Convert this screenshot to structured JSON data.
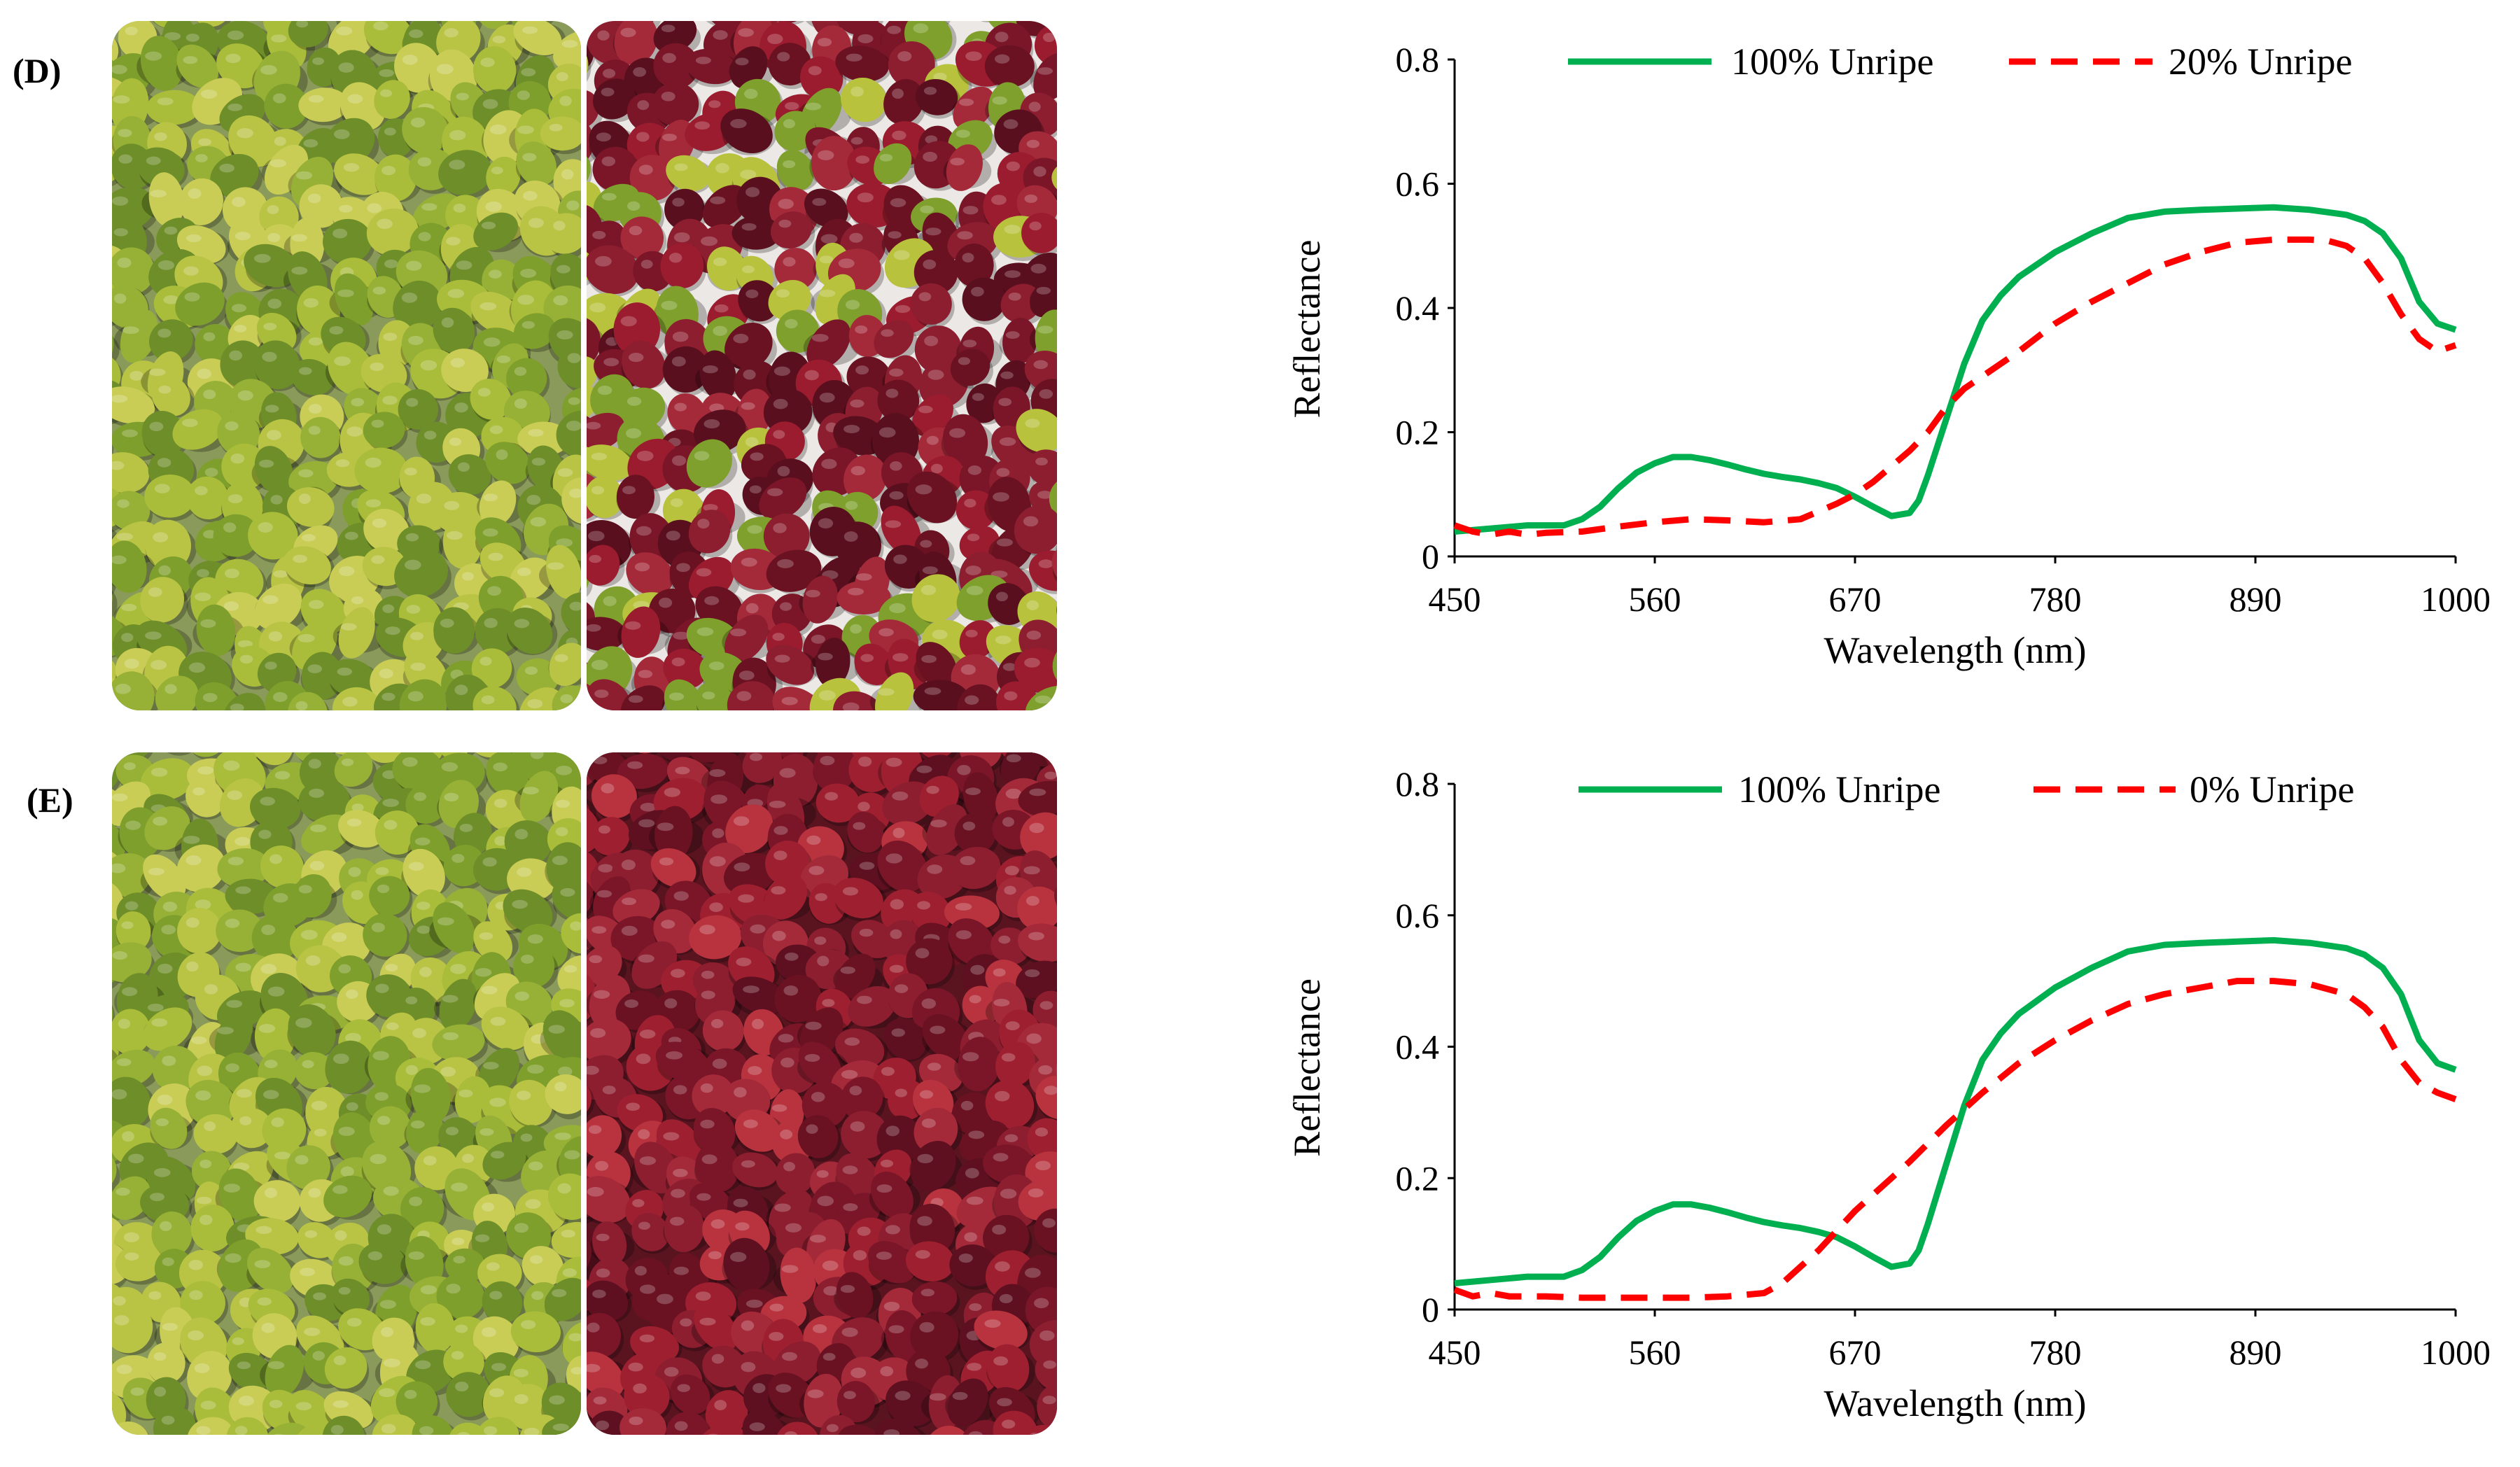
{
  "panels": [
    {
      "label": "(D)",
      "photos": [
        {
          "subject": "unripe green coffee cherries",
          "palette": [
            "#7f9f2c",
            "#97b136",
            "#a9bd3a",
            "#6d8e28",
            "#b9c445",
            "#c9cd55"
          ],
          "background": "#8a9a5a",
          "seed": 11
        },
        {
          "subject": "mostly ripe red coffee cherries with some green",
          "palette": [
            "#7a1628",
            "#8c1e30",
            "#6a1222",
            "#a42a3a",
            "#5a0f1e",
            "#7fa02c",
            "#9b1c2e",
            "#b8c23c"
          ],
          "background": "#ece8e6",
          "seed": 23
        }
      ]
    },
    {
      "label": "(E)",
      "photos": [
        {
          "subject": "unripe green coffee cherries",
          "palette": [
            "#7f9f2c",
            "#97b136",
            "#a9bd3a",
            "#6d8e28",
            "#b9c445",
            "#c9cd55"
          ],
          "background": "#8a9a5a",
          "seed": 37
        },
        {
          "subject": "ripe red coffee cherries",
          "palette": [
            "#7a1628",
            "#8c1e30",
            "#6a1222",
            "#a42a3a",
            "#9e2030",
            "#b8333e",
            "#5e1020"
          ],
          "background": "#5a1420",
          "seed": 53
        }
      ]
    }
  ],
  "chart_data": [
    {
      "type": "line",
      "panel": "(D)",
      "xlabel": "Wavelength (nm)",
      "ylabel": "Reflectance",
      "xlim": [
        450,
        1000
      ],
      "ylim": [
        0,
        0.8
      ],
      "xticks": [
        450,
        560,
        670,
        780,
        890,
        1000
      ],
      "yticks": [
        0,
        0.2,
        0.4,
        0.6,
        0.8
      ],
      "ytick_labels": [
        "0",
        "0.2",
        "0.4",
        "0.6",
        "0.8"
      ],
      "legend_position": "top",
      "series": [
        {
          "name": "100% Unripe",
          "color": "#00b050",
          "style": "solid",
          "x": [
            450,
            470,
            490,
            510,
            520,
            530,
            540,
            550,
            560,
            570,
            580,
            590,
            600,
            610,
            620,
            630,
            640,
            650,
            660,
            670,
            680,
            690,
            700,
            705,
            710,
            720,
            730,
            740,
            750,
            760,
            770,
            780,
            790,
            800,
            820,
            840,
            860,
            880,
            900,
            920,
            940,
            950,
            960,
            970,
            980,
            990,
            1000
          ],
          "y": [
            0.04,
            0.045,
            0.05,
            0.05,
            0.06,
            0.08,
            0.11,
            0.135,
            0.15,
            0.16,
            0.16,
            0.155,
            0.148,
            0.14,
            0.133,
            0.128,
            0.124,
            0.118,
            0.11,
            0.096,
            0.08,
            0.065,
            0.07,
            0.09,
            0.13,
            0.22,
            0.31,
            0.38,
            0.42,
            0.45,
            0.47,
            0.49,
            0.505,
            0.52,
            0.545,
            0.555,
            0.558,
            0.56,
            0.562,
            0.558,
            0.55,
            0.54,
            0.52,
            0.48,
            0.41,
            0.375,
            0.365
          ]
        },
        {
          "name": "20% Unripe",
          "color": "#ff0000",
          "style": "dashed",
          "x": [
            450,
            460,
            470,
            480,
            490,
            500,
            520,
            540,
            560,
            580,
            600,
            620,
            640,
            660,
            670,
            680,
            690,
            700,
            710,
            720,
            730,
            740,
            760,
            780,
            800,
            820,
            840,
            860,
            880,
            900,
            920,
            930,
            940,
            950,
            960,
            970,
            980,
            990,
            1000
          ],
          "y": [
            0.05,
            0.04,
            0.035,
            0.04,
            0.035,
            0.038,
            0.04,
            0.048,
            0.055,
            0.06,
            0.058,
            0.055,
            0.06,
            0.085,
            0.1,
            0.12,
            0.145,
            0.17,
            0.2,
            0.24,
            0.27,
            0.29,
            0.33,
            0.375,
            0.41,
            0.44,
            0.47,
            0.49,
            0.505,
            0.51,
            0.51,
            0.508,
            0.5,
            0.48,
            0.44,
            0.39,
            0.35,
            0.33,
            0.34
          ]
        }
      ]
    },
    {
      "type": "line",
      "panel": "(E)",
      "xlabel": "Wavelength (nm)",
      "ylabel": "Reflectance",
      "xlim": [
        450,
        1000
      ],
      "ylim": [
        0,
        0.8
      ],
      "xticks": [
        450,
        560,
        670,
        780,
        890,
        1000
      ],
      "yticks": [
        0,
        0.2,
        0.4,
        0.6,
        0.8
      ],
      "ytick_labels": [
        "0",
        "0.2",
        "0.4",
        "0.6",
        "0.8"
      ],
      "legend_position": "top",
      "series": [
        {
          "name": "100% Unripe",
          "color": "#00b050",
          "style": "solid",
          "x": [
            450,
            470,
            490,
            510,
            520,
            530,
            540,
            550,
            560,
            570,
            580,
            590,
            600,
            610,
            620,
            630,
            640,
            650,
            660,
            670,
            680,
            690,
            700,
            705,
            710,
            720,
            730,
            740,
            750,
            760,
            770,
            780,
            790,
            800,
            820,
            840,
            860,
            880,
            900,
            920,
            940,
            950,
            960,
            970,
            980,
            990,
            1000
          ],
          "y": [
            0.04,
            0.045,
            0.05,
            0.05,
            0.06,
            0.08,
            0.11,
            0.135,
            0.15,
            0.16,
            0.16,
            0.155,
            0.148,
            0.14,
            0.133,
            0.128,
            0.124,
            0.118,
            0.11,
            0.096,
            0.08,
            0.065,
            0.07,
            0.09,
            0.13,
            0.22,
            0.31,
            0.38,
            0.42,
            0.45,
            0.47,
            0.49,
            0.505,
            0.52,
            0.545,
            0.555,
            0.558,
            0.56,
            0.562,
            0.558,
            0.55,
            0.54,
            0.52,
            0.48,
            0.41,
            0.375,
            0.365
          ]
        },
        {
          "name": "0% Unripe",
          "color": "#ff0000",
          "style": "dashed",
          "x": [
            450,
            460,
            470,
            480,
            490,
            500,
            520,
            540,
            560,
            580,
            600,
            620,
            630,
            640,
            650,
            660,
            670,
            680,
            690,
            700,
            720,
            740,
            760,
            780,
            800,
            820,
            840,
            860,
            880,
            900,
            920,
            940,
            950,
            960,
            970,
            980,
            990,
            1000
          ],
          "y": [
            0.03,
            0.02,
            0.025,
            0.02,
            0.02,
            0.02,
            0.018,
            0.018,
            0.018,
            0.018,
            0.02,
            0.025,
            0.04,
            0.065,
            0.09,
            0.12,
            0.15,
            0.175,
            0.2,
            0.225,
            0.28,
            0.33,
            0.375,
            0.41,
            0.44,
            0.465,
            0.48,
            0.49,
            0.5,
            0.5,
            0.495,
            0.48,
            0.46,
            0.43,
            0.38,
            0.345,
            0.33,
            0.32
          ]
        }
      ]
    }
  ]
}
